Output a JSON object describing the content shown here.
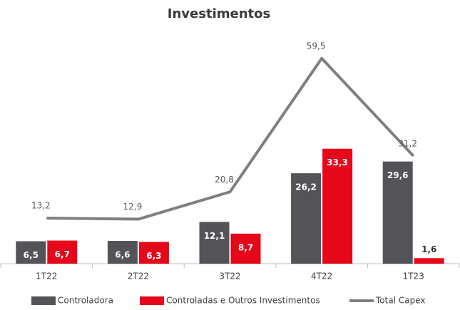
{
  "chart_data": {
    "type": "bar",
    "title": "Investimentos",
    "categories": [
      "1T22",
      "2T22",
      "3T22",
      "4T22",
      "1T23"
    ],
    "series": [
      {
        "name": "Controladora",
        "type": "bar",
        "color": "#545458",
        "values": [
          6.5,
          6.6,
          12.1,
          26.2,
          29.6
        ],
        "value_labels": [
          "6,5",
          "6,6",
          "12,1",
          "26,2",
          "29,6"
        ]
      },
      {
        "name": "Controladas e Outros Investimentos",
        "type": "bar",
        "color": "#e5081a",
        "values": [
          6.7,
          6.3,
          8.7,
          33.3,
          1.6
        ],
        "value_labels": [
          "6,7",
          "6,3",
          "8,7",
          "33,3",
          "1,6"
        ]
      },
      {
        "name": "Total Capex",
        "type": "line",
        "color": "#7f7f7f",
        "values": [
          13.2,
          12.9,
          20.8,
          59.5,
          31.2
        ],
        "value_labels": [
          "13,2",
          "12,9",
          "20,8",
          "59,5",
          "31,2"
        ]
      }
    ],
    "ylim": [
      0,
      70
    ]
  }
}
